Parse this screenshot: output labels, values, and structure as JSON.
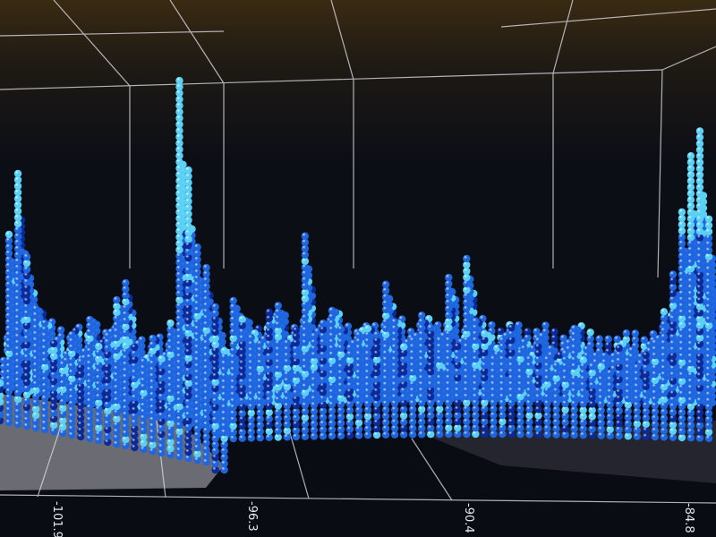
{
  "chart_data": {
    "type": "bar3d",
    "xlabel": "",
    "ylabel": "",
    "x_tick_labels": [
      "-101.9",
      "-96.3",
      "-90.4",
      "-84.8"
    ],
    "grid": true,
    "colors": {
      "low": "#0a2a9a",
      "mid": "#1e66e0",
      "high": "#5ad0f5",
      "background": "#0a0c14",
      "grid": "#d8d8e0",
      "land": "#8a8c90"
    },
    "column_heights_relative": [
      0.12,
      0.55,
      0.72,
      0.48,
      0.35,
      0.3,
      0.25,
      0.2,
      0.28,
      0.22,
      0.33,
      0.26,
      0.3,
      0.4,
      0.45,
      0.28,
      0.24,
      0.3,
      0.26,
      0.35,
      0.98,
      0.75,
      0.55,
      0.5,
      0.42,
      0.3,
      0.38,
      0.33,
      0.28,
      0.27,
      0.35,
      0.36,
      0.26,
      0.3,
      0.55,
      0.28,
      0.32,
      0.36,
      0.3,
      0.25,
      0.29,
      0.3,
      0.28,
      0.42,
      0.32,
      0.25,
      0.26,
      0.33,
      0.3,
      0.27,
      0.44,
      0.25,
      0.5,
      0.32,
      0.28,
      0.22,
      0.26,
      0.3,
      0.24,
      0.22,
      0.27,
      0.22,
      0.2,
      0.24,
      0.3,
      0.22,
      0.2,
      0.2,
      0.18,
      0.25,
      0.22,
      0.2,
      0.23,
      0.27,
      0.35,
      0.45,
      0.62,
      0.78,
      0.85,
      0.6
    ]
  }
}
